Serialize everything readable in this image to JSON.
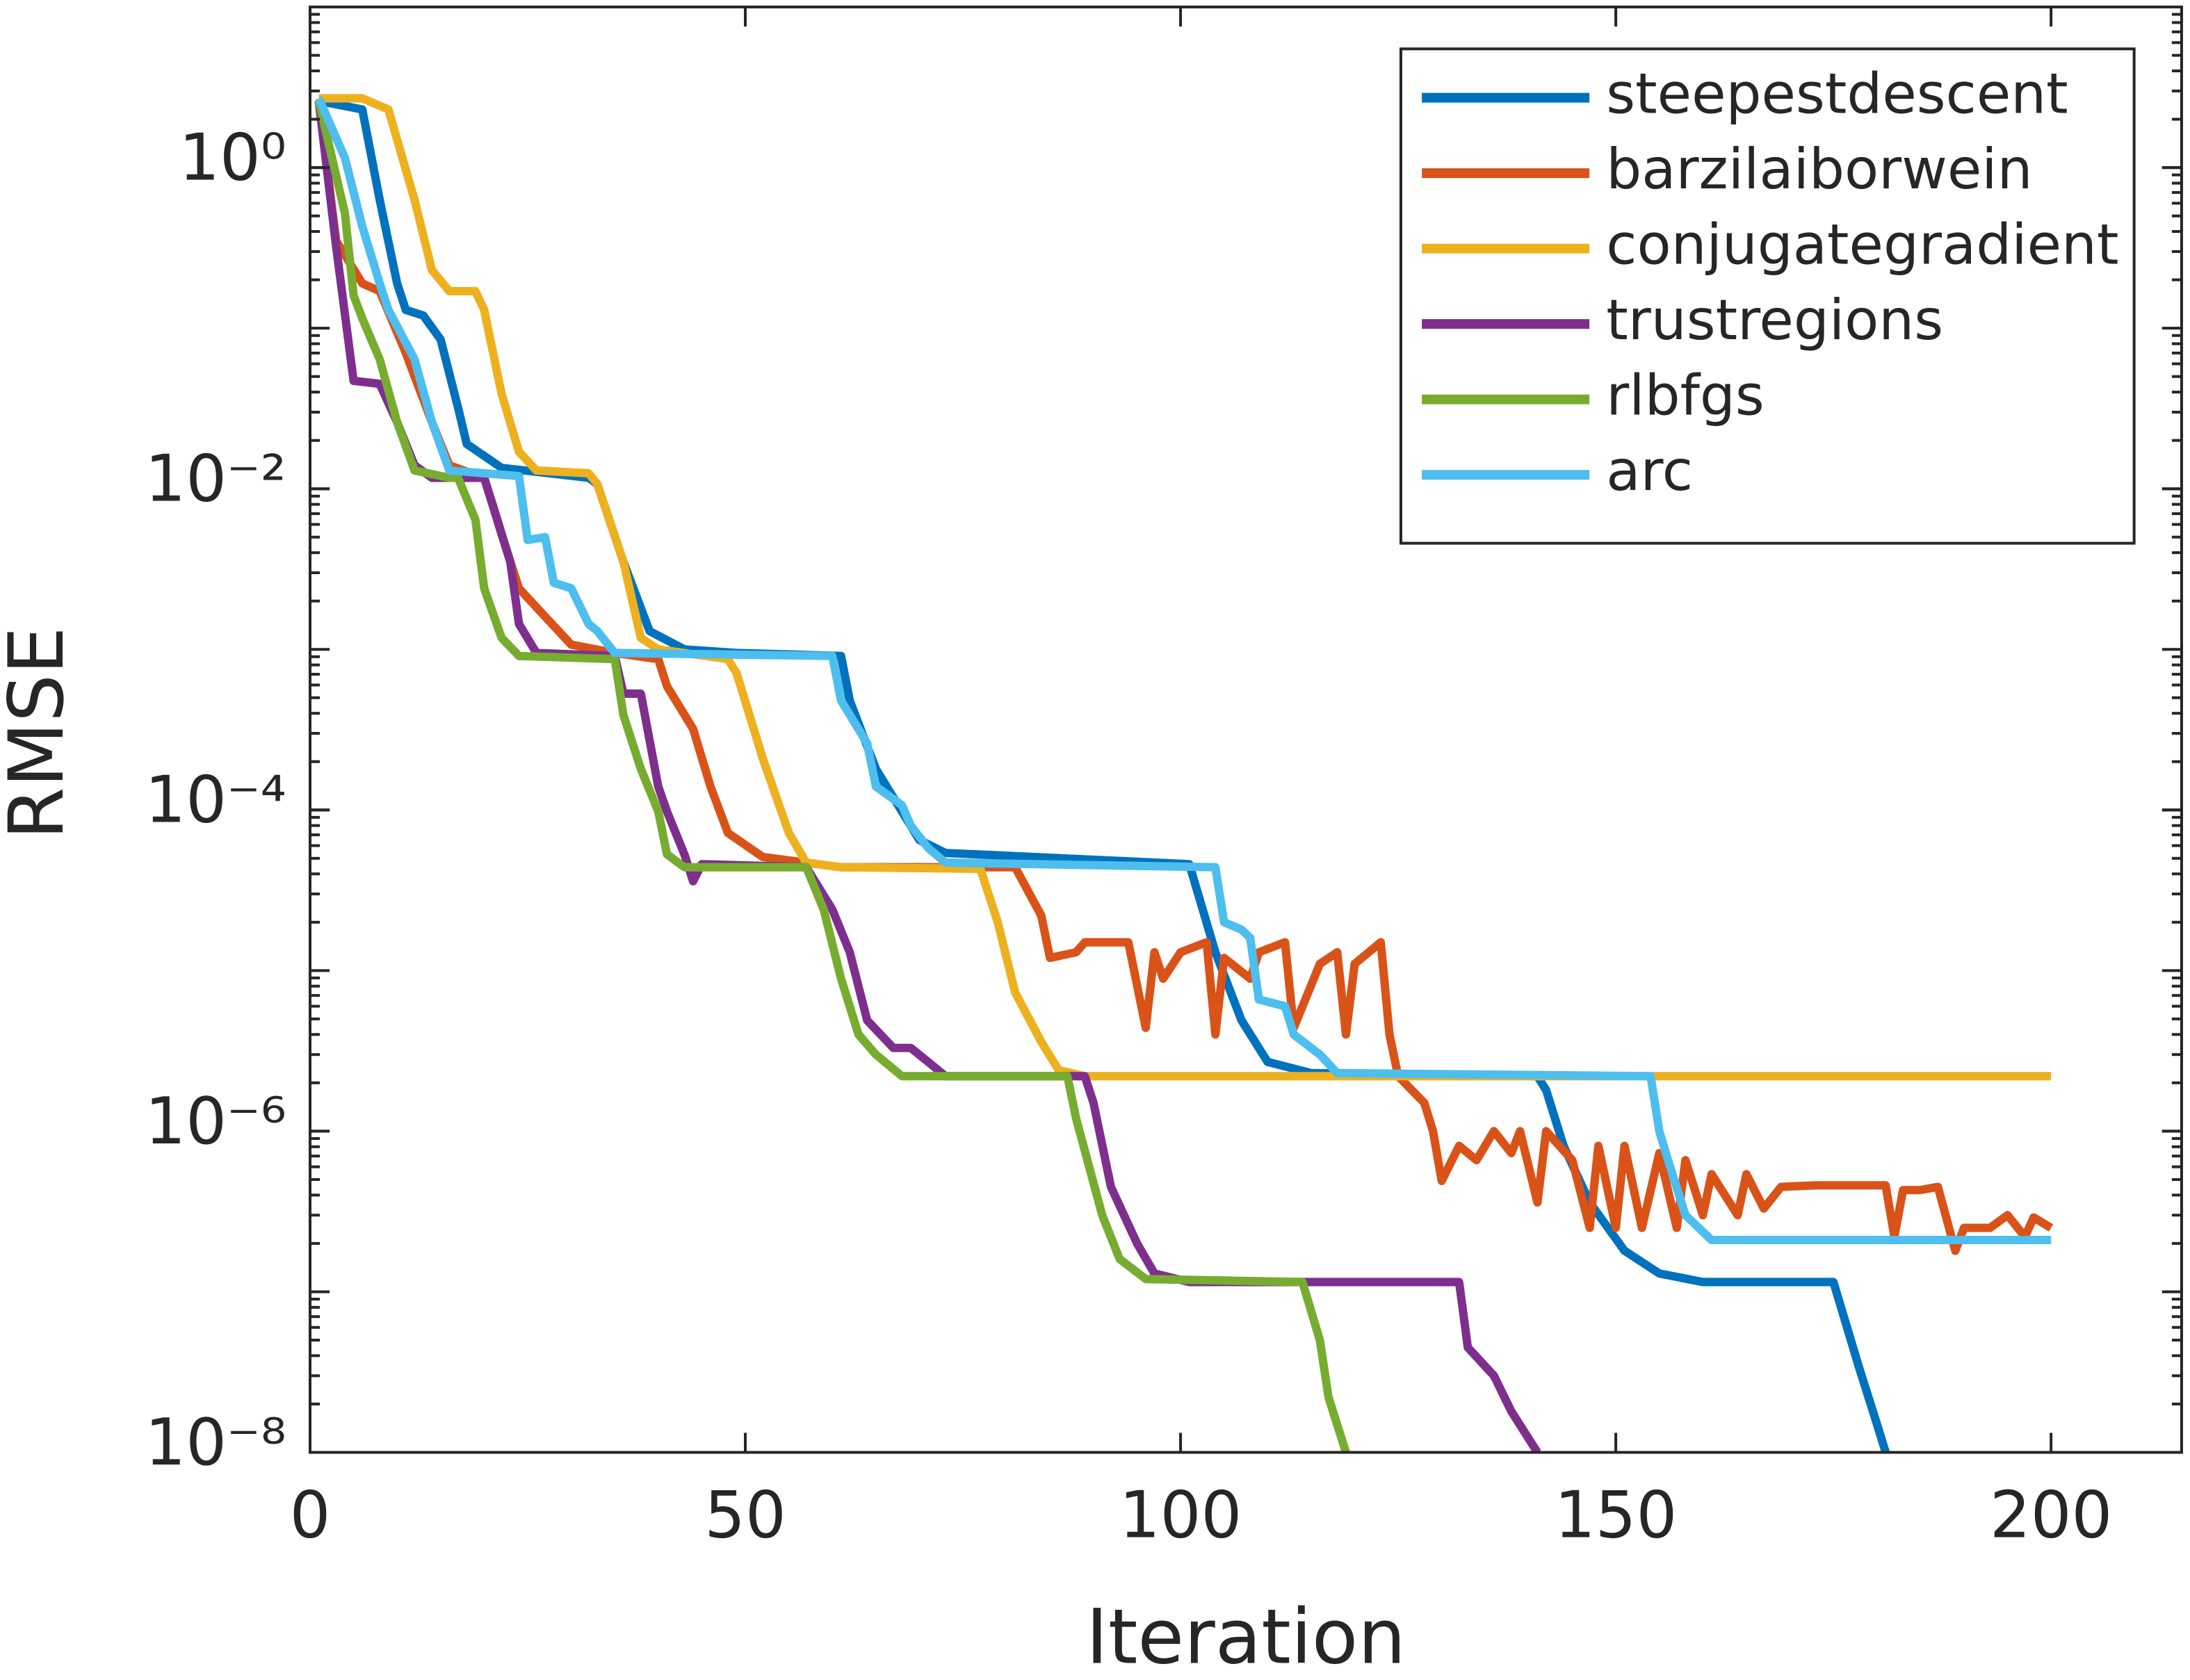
{
  "chart_data": {
    "type": "line",
    "ylabel": "RMSE",
    "xlabel": "Iteration",
    "xlim": [
      0,
      215
    ],
    "xticks": [
      0,
      50,
      100,
      150,
      200
    ],
    "ylim": [
      1e-08,
      10
    ],
    "log_y": true,
    "yticks": [
      {
        "value": 1,
        "label": "10⁰"
      },
      {
        "value": 0.01,
        "label": "10⁻²"
      },
      {
        "value": 0.0001,
        "label": "10⁻⁴"
      },
      {
        "value": 1e-06,
        "label": "10⁻⁶"
      },
      {
        "value": 1e-08,
        "label": "10⁻⁸"
      }
    ],
    "legend": "northeast",
    "series": [
      {
        "name": "steepestdescent",
        "color": "#0072bd",
        "x": [
          1,
          6,
          8,
          10,
          11,
          13,
          15,
          17,
          18,
          22,
          32,
          33,
          36,
          39,
          43,
          49,
          61,
          62,
          65,
          70,
          73,
          101,
          104,
          107,
          110,
          115,
          141,
          142,
          144,
          147,
          151,
          155,
          160,
          175,
          178,
          180,
          181
        ],
        "values": [
          2.6,
          2.3,
          0.63,
          0.19,
          0.13,
          0.12,
          0.085,
          0.032,
          0.019,
          0.0135,
          0.0117,
          0.0107,
          0.0035,
          0.0013,
          0.001,
          0.00095,
          0.00091,
          0.00048,
          0.00018,
          6.5e-05,
          5.4e-05,
          4.6e-05,
          1.3e-05,
          4.9e-06,
          2.7e-06,
          2.3e-06,
          2.2e-06,
          1.8e-06,
          8.1e-07,
          3.6e-07,
          1.8e-07,
          1.3e-07,
          1.15e-07,
          1.15e-07,
          3.3e-08,
          1.5e-08,
          1e-08
        ]
      },
      {
        "name": "barzilaiborwein",
        "color": "#d95319",
        "x": [
          1,
          3,
          6,
          8,
          11,
          14,
          16,
          20,
          22,
          24,
          27,
          30,
          35,
          40,
          41,
          44,
          46,
          48,
          52,
          61,
          81,
          84,
          85,
          88,
          89,
          94,
          96,
          97,
          98,
          100,
          103,
          104,
          105,
          108,
          109,
          112,
          113,
          116,
          118,
          119,
          120,
          123,
          124,
          125,
          128,
          129,
          130,
          132,
          134,
          136,
          138,
          139,
          141,
          142,
          145,
          147,
          148,
          150,
          151,
          153,
          155,
          157,
          158,
          160,
          161,
          164,
          165,
          167,
          169,
          173,
          181,
          182,
          183,
          185,
          187,
          189,
          190,
          193,
          195,
          197,
          198,
          200
        ],
        "values": [
          2.6,
          0.35,
          0.19,
          0.17,
          0.07,
          0.026,
          0.014,
          0.0117,
          0.0052,
          0.0024,
          0.0016,
          0.00107,
          0.00095,
          0.00087,
          0.00059,
          0.00032,
          0.00014,
          7.2e-05,
          5.1e-05,
          4.4e-05,
          4.4e-05,
          2.2e-05,
          1.2e-05,
          1.3e-05,
          1.5e-05,
          1.5e-05,
          4.4e-06,
          1.3e-05,
          8.9e-06,
          1.3e-05,
          1.5e-05,
          4e-06,
          1.2e-05,
          8.9e-06,
          1.3e-05,
          1.5e-05,
          4.4e-06,
          1.1e-05,
          1.3e-05,
          4e-06,
          1.1e-05,
          1.5e-05,
          4e-06,
          2.2e-06,
          1.5e-06,
          1e-06,
          4.9e-07,
          8.1e-07,
          6.6e-07,
          1e-06,
          7.3e-07,
          1e-06,
          3.6e-07,
          1e-06,
          6.6e-07,
          2.5e-07,
          8.1e-07,
          2.5e-07,
          8.1e-07,
          2.5e-07,
          7.3e-07,
          2.5e-07,
          6.6e-07,
          3e-07,
          5.4e-07,
          3e-07,
          5.4e-07,
          3.3e-07,
          4.5e-07,
          4.6e-07,
          4.6e-07,
          2.2e-07,
          4.3e-07,
          4.3e-07,
          4.5e-07,
          1.8e-07,
          2.5e-07,
          2.5e-07,
          3e-07,
          2.2e-07,
          2.9e-07,
          2.5e-07
        ]
      },
      {
        "name": "conjugategradient",
        "color": "#edb120",
        "x": [
          1,
          6,
          9,
          12,
          14,
          16,
          19,
          20,
          22,
          24,
          26,
          32,
          33,
          36,
          38,
          40,
          48,
          49,
          52,
          55,
          57,
          61,
          77,
          79,
          81,
          84,
          86,
          89,
          200
        ],
        "values": [
          2.7,
          2.7,
          2.3,
          0.63,
          0.23,
          0.17,
          0.17,
          0.13,
          0.039,
          0.017,
          0.013,
          0.0125,
          0.0107,
          0.0035,
          0.00118,
          0.001,
          0.00087,
          0.00071,
          0.00021,
          7.2e-05,
          4.7e-05,
          4.4e-05,
          4.3e-05,
          2e-05,
          7.3e-06,
          3.6e-06,
          2.4e-06,
          2.2e-06,
          2.2e-06
        ]
      },
      {
        "name": "trustregions",
        "color": "#7e2f8e",
        "x": [
          1,
          3,
          5,
          8,
          10,
          12,
          14,
          20,
          21,
          23,
          24,
          26,
          35,
          36,
          38,
          40,
          41,
          43,
          44,
          45,
          57,
          60,
          62,
          64,
          67,
          69,
          71,
          73,
          89,
          90,
          92,
          95,
          97,
          101,
          132,
          133,
          136,
          138,
          141
        ],
        "values": [
          2.6,
          0.32,
          0.047,
          0.045,
          0.026,
          0.014,
          0.0117,
          0.0117,
          0.0079,
          0.0035,
          0.00144,
          0.00095,
          0.00091,
          0.00053,
          0.00053,
          0.00014,
          9.8e-05,
          5.3e-05,
          3.6e-05,
          4.6e-05,
          4.4e-05,
          2.4e-05,
          1.3e-05,
          4.9e-06,
          3.3e-06,
          3.3e-06,
          2.7e-06,
          2.2e-06,
          2.2e-06,
          1.5e-06,
          4.5e-07,
          2e-07,
          1.3e-07,
          1.15e-07,
          1.15e-07,
          4.5e-08,
          3e-08,
          1.8e-08,
          1e-08
        ]
      },
      {
        "name": "rlbfgs",
        "color": "#77ac30",
        "x": [
          1,
          4,
          5,
          6,
          8,
          10,
          12,
          16,
          17,
          19,
          20,
          22,
          24,
          35,
          36,
          38,
          40,
          41,
          43,
          57,
          59,
          61,
          63,
          65,
          68,
          87,
          88,
          91,
          93,
          96,
          114,
          116,
          117,
          119
        ],
        "values": [
          2.6,
          0.52,
          0.16,
          0.115,
          0.064,
          0.026,
          0.013,
          0.0117,
          0.0117,
          0.0064,
          0.0024,
          0.00118,
          0.00091,
          0.00087,
          0.00039,
          0.00018,
          9.8e-05,
          5.3e-05,
          4.4e-05,
          4.4e-05,
          2.4e-05,
          8.9e-06,
          4e-06,
          3e-06,
          2.2e-06,
          2.2e-06,
          1.2e-06,
          3e-07,
          1.6e-07,
          1.2e-07,
          1.15e-07,
          5e-08,
          2.2e-08,
          1e-08
        ]
      },
      {
        "name": "arc",
        "color": "#4dbeee",
        "x": [
          1,
          4,
          6,
          8,
          9,
          12,
          14,
          16,
          24,
          25,
          27,
          28,
          30,
          32,
          33,
          35,
          60,
          61,
          64,
          65,
          68,
          69,
          71,
          73,
          104,
          105,
          107,
          108,
          109,
          112,
          113,
          116,
          118,
          154,
          155,
          156,
          158,
          161,
          200
        ],
        "values": [
          2.7,
          1.15,
          0.43,
          0.19,
          0.13,
          0.064,
          0.026,
          0.013,
          0.012,
          0.0048,
          0.005,
          0.0026,
          0.0024,
          0.00144,
          0.0013,
          0.00095,
          0.00091,
          0.00048,
          0.00026,
          0.00014,
          0.000107,
          8e-05,
          5.8e-05,
          4.7e-05,
          4.4e-05,
          2e-05,
          1.8e-05,
          1.6e-05,
          6.6e-06,
          6e-06,
          4e-06,
          3e-06,
          2.3e-06,
          2.2e-06,
          1e-06,
          6.6e-07,
          3e-07,
          2.1e-07,
          2.1e-07
        ]
      }
    ]
  }
}
